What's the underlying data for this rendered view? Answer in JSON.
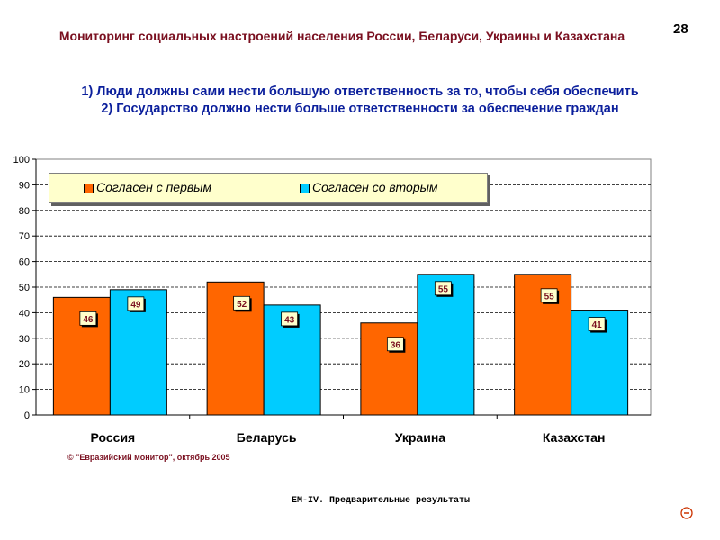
{
  "header": {
    "title": "Мониторинг социальных настроений населения России, Беларуси, Украины и Казахстана",
    "page_number": "28"
  },
  "subtitle": {
    "line1": "1) Люди должны сами нести большую ответственность за то, чтобы себя обеспечить",
    "line2": "2) Государство должно нести больше ответственности за обеспечение граждан"
  },
  "chart_data": {
    "type": "bar",
    "categories": [
      "Россия",
      "Беларусь",
      "Украина",
      "Казахстан"
    ],
    "series": [
      {
        "name": "Согласен с первым",
        "values": [
          46,
          52,
          36,
          55
        ],
        "color": "#ff6600"
      },
      {
        "name": "Согласен со вторым",
        "values": [
          49,
          43,
          55,
          41
        ],
        "color": "#00ccff"
      }
    ],
    "ylim": [
      0,
      100
    ],
    "yticks": [
      0,
      10,
      20,
      30,
      40,
      50,
      60,
      70,
      80,
      90,
      100
    ],
    "grid": true,
    "legend_position": "top-left",
    "title": "",
    "xlabel": "",
    "ylabel": ""
  },
  "source_note": "© \"Евразийский монитор\", октябрь 2005",
  "footer": {
    "text": "EM-IV. Предварительные результаты"
  },
  "icons": {
    "nav": "minus-circle-icon"
  }
}
